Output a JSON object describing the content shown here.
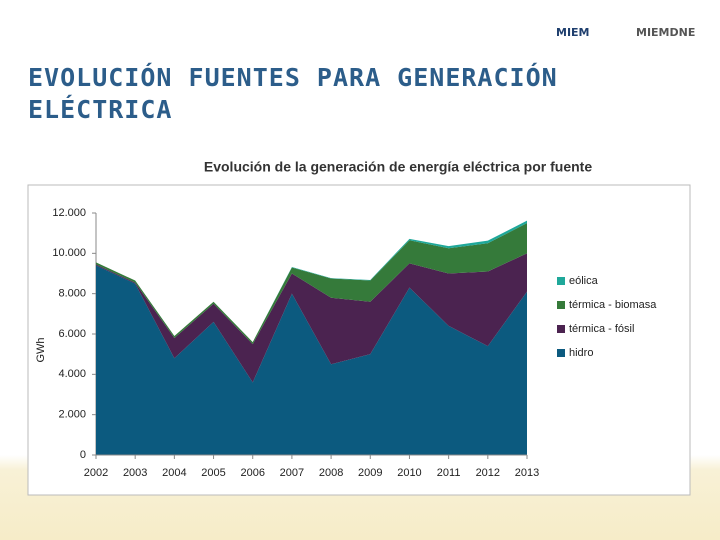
{
  "header": {
    "logos": [
      "MIEM",
      "MIEMDNE"
    ],
    "title": "EVOLUCIÓN FUENTES PARA GENERACIÓN ELÉCTRICA"
  },
  "chart_data": {
    "type": "stacked-area",
    "title": "Evolución de la generación de energía eléctrica por fuente",
    "y_label": "GWh",
    "x": [
      2002,
      2003,
      2004,
      2005,
      2006,
      2007,
      2008,
      2009,
      2010,
      2011,
      2012,
      2013
    ],
    "xlim": [
      2002,
      2013
    ],
    "ylim": [
      0,
      12000
    ],
    "yticks": [
      0,
      {
        "value": 2000,
        "label": "2.000"
      },
      {
        "value": 4000,
        "label": "4.000"
      },
      {
        "value": 6000,
        "label": "6.000"
      },
      {
        "value": 8000,
        "label": "8.000"
      },
      {
        "value": 10000,
        "label": "10.000"
      },
      {
        "value": 12000,
        "label": "12.000"
      }
    ],
    "legend": "right",
    "series": [
      {
        "name": "hidro",
        "color": "#0c5a7f",
        "values": [
          9400,
          8500,
          4800,
          6600,
          3600,
          8000,
          4500,
          5000,
          8300,
          6400,
          5400,
          8100
        ]
      },
      {
        "name": "térmica - fósil",
        "color": "#4b2350",
        "values": [
          50,
          50,
          1000,
          900,
          1900,
          1000,
          3300,
          2600,
          1200,
          2600,
          3700,
          1900
        ]
      },
      {
        "name": "térmica - biomasa",
        "color": "#357a3a",
        "values": [
          100,
          100,
          100,
          100,
          100,
          300,
          950,
          1050,
          1150,
          1250,
          1400,
          1500
        ]
      },
      {
        "name": "eólica",
        "color": "#1fa89a",
        "values": [
          0,
          0,
          0,
          0,
          0,
          20,
          20,
          30,
          70,
          110,
          130,
          120
        ]
      }
    ]
  }
}
